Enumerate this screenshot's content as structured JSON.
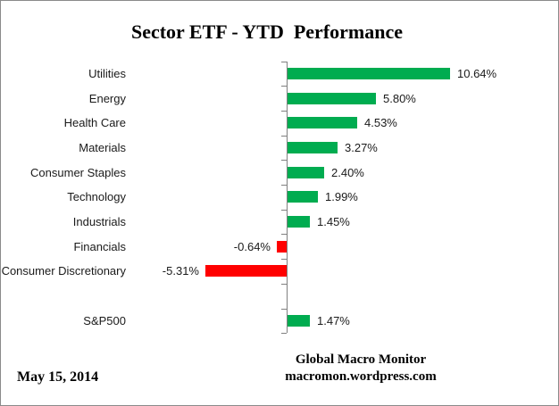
{
  "title": "Sector ETF - YTD  Performance",
  "footer": {
    "date": "May 15, 2014",
    "source_line1": "Global Macro Monitor",
    "source_line2": "macromon.wordpress.com"
  },
  "colors": {
    "positive_bar": "#00AC50",
    "negative_bar": "#FF0000",
    "axis": "#808080",
    "text": "#000000"
  },
  "chart_data": {
    "type": "bar",
    "orientation": "horizontal",
    "title": "Sector ETF - YTD  Performance",
    "xlabel": "",
    "ylabel": "",
    "unit": "%",
    "grid": false,
    "legend": false,
    "value_labels_position": "outside-end",
    "categories": [
      "Utilities",
      "Energy",
      "Health Care",
      "Materials",
      "Consumer Staples",
      "Technology",
      "Industrials",
      "Financials",
      "Consumer Discretionary",
      "",
      "S&P500"
    ],
    "values": [
      10.64,
      5.8,
      4.53,
      3.27,
      2.4,
      1.99,
      1.45,
      -0.64,
      -5.31,
      null,
      1.47
    ],
    "value_labels": [
      "10.64%",
      "5.80%",
      "4.53%",
      "3.27%",
      "2.40%",
      "1.99%",
      "1.45%",
      "-0.64%",
      "-5.31%",
      "",
      "1.47%"
    ]
  }
}
